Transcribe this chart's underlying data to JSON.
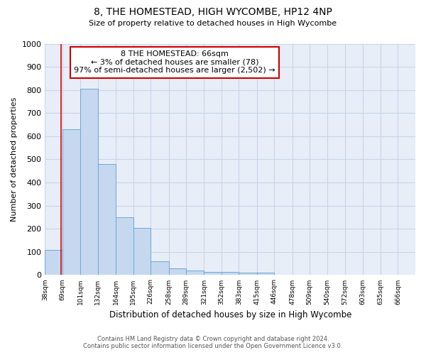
{
  "title": "8, THE HOMESTEAD, HIGH WYCOMBE, HP12 4NP",
  "subtitle": "Size of property relative to detached houses in High Wycombe",
  "xlabel": "Distribution of detached houses by size in High Wycombe",
  "ylabel": "Number of detached properties",
  "footer_line1": "Contains HM Land Registry data © Crown copyright and database right 2024.",
  "footer_line2": "Contains public sector information licensed under the Open Government Licence v3.0.",
  "annotation_line1": "8 THE HOMESTEAD: 66sqm",
  "annotation_line2": "← 3% of detached houses are smaller (78)",
  "annotation_line3": "97% of semi-detached houses are larger (2,502) →",
  "bar_color": "#c5d8f0",
  "bar_edge_color": "#6aaad4",
  "bar_left_edges": [
    38,
    69,
    101,
    132,
    164,
    195,
    226,
    258,
    289,
    321,
    352,
    383,
    415,
    446,
    478,
    509,
    540,
    572,
    603,
    635
  ],
  "bar_widths": [
    31,
    32,
    31,
    32,
    31,
    31,
    32,
    31,
    32,
    31,
    31,
    32,
    31,
    32,
    31,
    31,
    32,
    31,
    32,
    31
  ],
  "bar_heights": [
    110,
    630,
    805,
    480,
    250,
    205,
    60,
    28,
    20,
    13,
    13,
    10,
    10,
    0,
    0,
    0,
    0,
    0,
    0,
    0
  ],
  "x_tick_labels": [
    "38sqm",
    "69sqm",
    "101sqm",
    "132sqm",
    "164sqm",
    "195sqm",
    "226sqm",
    "258sqm",
    "289sqm",
    "321sqm",
    "352sqm",
    "383sqm",
    "415sqm",
    "446sqm",
    "478sqm",
    "509sqm",
    "540sqm",
    "572sqm",
    "603sqm",
    "635sqm",
    "666sqm"
  ],
  "x_tick_positions": [
    38,
    69,
    101,
    132,
    164,
    195,
    226,
    258,
    289,
    321,
    352,
    383,
    415,
    446,
    478,
    509,
    540,
    572,
    603,
    635,
    666
  ],
  "ylim": [
    0,
    1000
  ],
  "yticks": [
    0,
    100,
    200,
    300,
    400,
    500,
    600,
    700,
    800,
    900,
    1000
  ],
  "property_x": 66,
  "red_line_color": "#dd0000",
  "annotation_box_facecolor": "#ffffff",
  "annotation_box_edgecolor": "#cc0000",
  "grid_color": "#c8d4e8",
  "axes_bg_color": "#e8eef8",
  "fig_bg_color": "#ffffff"
}
